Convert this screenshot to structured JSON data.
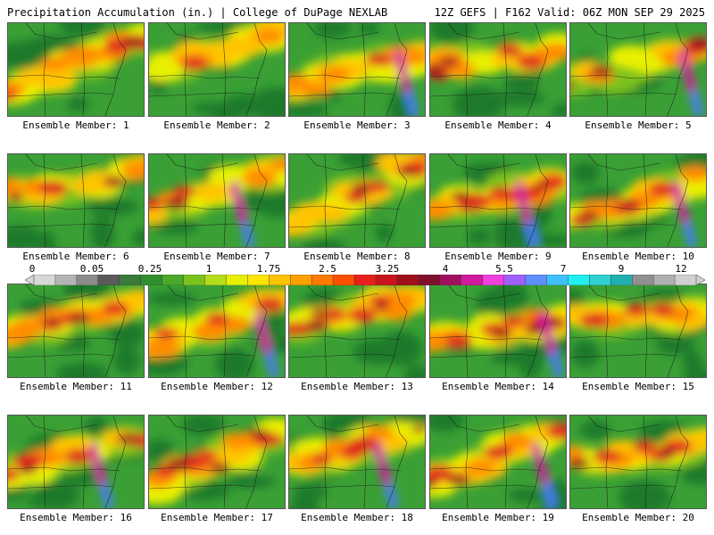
{
  "header": {
    "left": "Precipitation Accumulation (in.) | College of DuPage NEXLAB",
    "right": "12Z GEFS | F162 Valid: 06Z MON SEP 29 2025"
  },
  "panels": [
    {
      "label": "Ensemble Member: 1"
    },
    {
      "label": "Ensemble Member: 2"
    },
    {
      "label": "Ensemble Member: 3"
    },
    {
      "label": "Ensemble Member: 4"
    },
    {
      "label": "Ensemble Member: 5"
    },
    {
      "label": "Ensemble Member: 6"
    },
    {
      "label": "Ensemble Member: 7"
    },
    {
      "label": "Ensemble Member: 8"
    },
    {
      "label": "Ensemble Member: 9"
    },
    {
      "label": "Ensemble Member: 10"
    },
    {
      "label": "Ensemble Member: 11"
    },
    {
      "label": "Ensemble Member: 12"
    },
    {
      "label": "Ensemble Member: 13"
    },
    {
      "label": "Ensemble Member: 14"
    },
    {
      "label": "Ensemble Member: 15"
    },
    {
      "label": "Ensemble Member: 16"
    },
    {
      "label": "Ensemble Member: 17"
    },
    {
      "label": "Ensemble Member: 18"
    },
    {
      "label": "Ensemble Member: 19"
    },
    {
      "label": "Ensemble Member: 20"
    }
  ],
  "colorbar": {
    "tick_labels": [
      "0",
      "0.05",
      "0.25",
      "1",
      "1.75",
      "2.5",
      "3.25",
      "4",
      "5.5",
      "7",
      "9",
      "12"
    ],
    "colors": [
      "#d8d8d8",
      "#b4b4b4",
      "#8c8c8c",
      "#5a5a5a",
      "#3a7a3a",
      "#2f8f2f",
      "#4aa82a",
      "#7cc21f",
      "#b6dd1a",
      "#e8f000",
      "#ffe600",
      "#ffc400",
      "#ffa000",
      "#ff7a00",
      "#ff5000",
      "#e8201a",
      "#c8141a",
      "#a0101a",
      "#80102a",
      "#a01060",
      "#d01aa0",
      "#f040e0",
      "#a060ff",
      "#6090ff",
      "#40c0ff",
      "#20f0f0",
      "#30d0d0",
      "#20b0b0",
      "#909090",
      "#b0b0b0",
      "#d0d0d0"
    ]
  },
  "field_colors": {
    "dark_green": "#1f7a2a",
    "green": "#3aa035",
    "light_green": "#7cc21f",
    "yellow": "#e8f000",
    "gold": "#ffc400",
    "orange": "#ff8c00",
    "red": "#e02a1a",
    "dark_red": "#a0101a",
    "magenta": "#d01aa0",
    "blue": "#4a7aff",
    "cyan": "#20e0f0"
  }
}
